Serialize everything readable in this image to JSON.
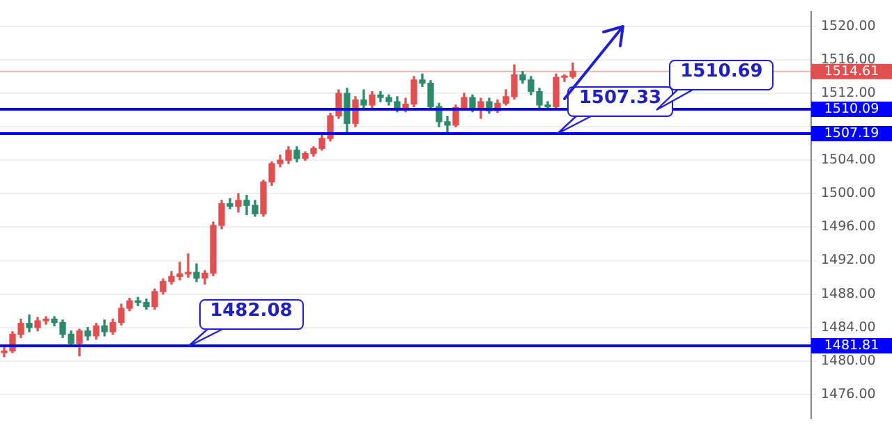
{
  "chart_data": {
    "type": "candlestick",
    "categories": [
      null,
      null,
      null,
      null,
      null,
      null,
      null,
      null,
      null,
      null,
      null,
      null,
      null,
      null,
      null,
      null,
      null,
      null,
      null,
      null,
      null,
      null,
      null,
      null,
      null,
      null,
      null,
      null,
      null,
      null,
      null,
      null,
      null,
      null,
      null,
      null,
      null,
      null,
      null,
      null,
      null,
      null,
      null,
      null,
      null,
      null,
      null,
      null,
      null,
      null,
      null,
      null,
      null,
      null,
      null,
      null,
      null,
      null,
      null,
      null,
      null,
      null,
      null,
      null,
      null,
      null,
      null,
      null,
      null,
      null,
      null,
      null,
      null,
      null,
      null,
      null,
      null,
      null,
      null,
      null,
      null,
      null,
      null,
      null,
      null,
      null,
      null,
      null,
      null,
      null,
      null,
      null,
      null,
      null,
      null,
      null,
      null
    ],
    "ohlc": [
      [
        1481.0,
        1481.6,
        1480.5,
        1481.2
      ],
      [
        1481.2,
        1483.5,
        1481.0,
        1483.2
      ],
      [
        1483.2,
        1485.0,
        1482.8,
        1484.5
      ],
      [
        1484.5,
        1485.5,
        1483.5,
        1484.0
      ],
      [
        1484.0,
        1485.2,
        1483.6,
        1484.8
      ],
      [
        1484.8,
        1485.3,
        1484.4,
        1485.0
      ],
      [
        1485.0,
        1485.3,
        1484.2,
        1484.6
      ],
      [
        1484.6,
        1484.9,
        1482.8,
        1483.2
      ],
      [
        1483.2,
        1483.6,
        1481.9,
        1482.1
      ],
      [
        1482.1,
        1483.8,
        1480.6,
        1483.6
      ],
      [
        1483.6,
        1484.0,
        1482.5,
        1483.0
      ],
      [
        1483.0,
        1484.5,
        1482.6,
        1484.2
      ],
      [
        1484.2,
        1484.9,
        1483.0,
        1483.5
      ],
      [
        1483.5,
        1485.0,
        1483.2,
        1484.6
      ],
      [
        1484.6,
        1486.8,
        1484.3,
        1486.3
      ],
      [
        1486.3,
        1487.5,
        1486.0,
        1487.2
      ],
      [
        1487.2,
        1487.6,
        1486.6,
        1487.0
      ],
      [
        1487.0,
        1487.4,
        1486.2,
        1486.5
      ],
      [
        1486.5,
        1488.6,
        1486.2,
        1488.3
      ],
      [
        1488.3,
        1489.8,
        1488.0,
        1489.5
      ],
      [
        1489.5,
        1490.7,
        1489.2,
        1490.1
      ],
      [
        1490.1,
        1491.8,
        1489.7,
        1490.4
      ],
      [
        1490.4,
        1492.8,
        1490.0,
        1490.6
      ],
      [
        1490.6,
        1491.6,
        1489.5,
        1489.9
      ],
      [
        1489.9,
        1490.8,
        1489.2,
        1490.5
      ],
      [
        1490.5,
        1496.6,
        1490.2,
        1496.2
      ],
      [
        1496.2,
        1499.2,
        1495.8,
        1498.8
      ],
      [
        1498.8,
        1499.4,
        1498.2,
        1498.5
      ],
      [
        1498.5,
        1500.0,
        1497.8,
        1499.2
      ],
      [
        1499.2,
        1499.8,
        1497.5,
        1498.6
      ],
      [
        1498.6,
        1499.2,
        1497.3,
        1497.6
      ],
      [
        1497.6,
        1501.6,
        1497.3,
        1501.4
      ],
      [
        1501.4,
        1503.8,
        1501.0,
        1503.6
      ],
      [
        1503.6,
        1504.6,
        1503.2,
        1504.0
      ],
      [
        1504.0,
        1505.6,
        1503.6,
        1505.2
      ],
      [
        1505.2,
        1505.6,
        1503.8,
        1504.2
      ],
      [
        1504.2,
        1505.0,
        1504.0,
        1504.8
      ],
      [
        1504.8,
        1505.6,
        1504.5,
        1505.4
      ],
      [
        1505.4,
        1507.0,
        1505.2,
        1506.6
      ],
      [
        1506.6,
        1509.6,
        1506.3,
        1509.3
      ],
      [
        1509.3,
        1512.4,
        1509.0,
        1512.0
      ],
      [
        1512.0,
        1512.6,
        1507.2,
        1508.4
      ],
      [
        1508.4,
        1511.6,
        1508.0,
        1511.2
      ],
      [
        1511.2,
        1512.4,
        1510.2,
        1510.6
      ],
      [
        1510.6,
        1512.2,
        1510.2,
        1511.8
      ],
      [
        1511.8,
        1512.2,
        1511.0,
        1511.5
      ],
      [
        1511.5,
        1511.8,
        1510.6,
        1511.0
      ],
      [
        1511.0,
        1511.6,
        1509.8,
        1510.2
      ],
      [
        1510.2,
        1511.4,
        1509.8,
        1510.7
      ],
      [
        1510.7,
        1514.0,
        1510.4,
        1513.6
      ],
      [
        1513.6,
        1514.3,
        1512.8,
        1513.2
      ],
      [
        1513.2,
        1513.5,
        1510.0,
        1510.4
      ],
      [
        1510.4,
        1510.8,
        1508.0,
        1508.6
      ],
      [
        1508.6,
        1509.2,
        1507.2,
        1508.2
      ],
      [
        1508.2,
        1510.6,
        1508.0,
        1510.3
      ],
      [
        1510.3,
        1512.0,
        1510.0,
        1511.5
      ],
      [
        1511.5,
        1511.8,
        1509.8,
        1510.2
      ],
      [
        1510.2,
        1511.4,
        1509.0,
        1511.0
      ],
      [
        1511.0,
        1511.4,
        1509.6,
        1509.9
      ],
      [
        1509.9,
        1511.2,
        1509.7,
        1510.8
      ],
      [
        1510.8,
        1512.4,
        1510.6,
        1511.6
      ],
      [
        1511.6,
        1515.4,
        1511.3,
        1514.2
      ],
      [
        1514.2,
        1514.6,
        1513.2,
        1513.6
      ],
      [
        1513.6,
        1514.0,
        1511.8,
        1512.2
      ],
      [
        1512.2,
        1512.6,
        1510.0,
        1510.6
      ],
      [
        1510.6,
        1511.0,
        1510.2,
        1510.4
      ],
      [
        1510.4,
        1514.3,
        1510.2,
        1513.9
      ],
      [
        1513.9,
        1514.2,
        1513.4,
        1514.0
      ],
      [
        1514.0,
        1515.6,
        1513.8,
        1514.61
      ],
      null,
      null,
      null,
      null,
      null,
      null,
      null,
      null,
      null,
      null,
      null,
      null,
      null,
      null,
      null,
      null,
      null,
      null,
      null,
      null,
      null,
      null,
      null,
      null,
      null,
      null,
      null,
      null
    ],
    "colors": [
      "#e05050",
      "#e05050",
      "#e05050",
      "#2a8a6a",
      "#e05050",
      "#e05050",
      "#2a8a6a",
      "#2a8a6a",
      "#2a8a6a",
      "#e05050",
      "#2a8a6a",
      "#e05050",
      "#2a8a6a",
      "#e05050",
      "#e05050",
      "#e05050",
      "#2a8a6a",
      "#2a8a6a",
      "#e05050",
      "#e05050",
      "#e05050",
      "#e05050",
      "#e05050",
      "#2a8a6a",
      "#e05050",
      "#e05050",
      "#e05050",
      "#2a8a6a",
      "#e05050",
      "#2a8a6a",
      "#2a8a6a",
      "#e05050",
      "#e05050",
      "#e05050",
      "#e05050",
      "#2a8a6a",
      "#e05050",
      "#e05050",
      "#e05050",
      "#e05050",
      "#e05050",
      "#2a8a6a",
      "#e05050",
      "#2a8a6a",
      "#e05050",
      "#2a8a6a",
      "#2a8a6a",
      "#2a8a6a",
      "#e05050",
      "#e05050",
      "#2a8a6a",
      "#2a8a6a",
      "#2a8a6a",
      "#2a8a6a",
      "#e05050",
      "#e05050",
      "#2a8a6a",
      "#e05050",
      "#2a8a6a",
      "#e05050",
      "#e05050",
      "#e05050",
      "#2a8a6a",
      "#2a8a6a",
      "#2a8a6a",
      "#2a8a6a",
      "#e05050",
      "#e05050",
      "#e05050",
      null,
      null,
      null,
      null,
      null,
      null,
      null,
      null,
      null,
      null,
      null,
      null,
      null,
      null,
      null,
      null,
      null,
      null,
      null,
      null,
      null,
      null,
      null,
      null,
      null,
      null,
      null,
      null
    ],
    "ylim": [
      1473.2,
      1521.7
    ],
    "yticks": [
      {
        "value": 1476,
        "label": "1476.00"
      },
      {
        "value": 1480,
        "label": "1480.00"
      },
      {
        "value": 1484,
        "label": "1484.00"
      },
      {
        "value": 1488,
        "label": "1488.00"
      },
      {
        "value": 1492,
        "label": "1492.00"
      },
      {
        "value": 1496,
        "label": "1496.00"
      },
      {
        "value": 1500,
        "label": "1500.00"
      },
      {
        "value": 1504,
        "label": "1504.00"
      },
      {
        "value": 1508,
        "label": null
      },
      {
        "value": 1512,
        "label": "1512.00"
      },
      {
        "value": 1516,
        "label": "1516.00"
      },
      {
        "value": 1520,
        "label": "1520.00"
      }
    ],
    "ref_lines": [
      {
        "axis": "y",
        "value": 1481.81,
        "label": "1481.81",
        "color": "#0000ff",
        "line_style": "solid"
      },
      {
        "axis": "y",
        "value": 1507.19,
        "label": "1507.19",
        "color": "#0000ff",
        "line_style": "solid"
      },
      {
        "axis": "y",
        "value": 1510.09,
        "label": "1510.09",
        "color": "#0000ff",
        "line_style": "solid"
      },
      {
        "axis": "y",
        "value": 1514.61,
        "label": "1514.61",
        "color": "#e05050",
        "line_style": "solid"
      }
    ],
    "annotations": [
      {
        "text": "1482.08",
        "y": 1481.81
      },
      {
        "text": "1507.33",
        "y": 1507.19
      },
      {
        "text": "1510.69",
        "y": 1510.09
      }
    ],
    "grid": "y",
    "tick_labels": "y",
    "legend": false
  }
}
